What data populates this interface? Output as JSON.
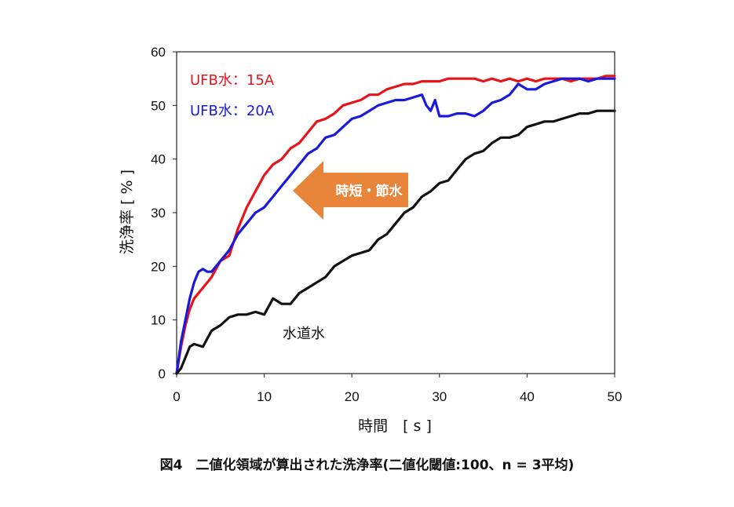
{
  "caption": "図4　二値化領域が算出された洗浄率(二値化閾値:100、n = 3平均)",
  "chart_data": {
    "type": "line",
    "title": "",
    "xlabel": "時間　[ s ]",
    "ylabel": "洗浄率 [ % ]",
    "xlim": [
      0,
      50
    ],
    "ylim": [
      0,
      60
    ],
    "xticks": [
      0,
      10,
      20,
      30,
      40,
      50
    ],
    "yticks": [
      0,
      10,
      20,
      30,
      40,
      50,
      60
    ],
    "grid": false,
    "legend_position": "top-left, inside plot",
    "annotations": {
      "tap_water_label": "水道水",
      "arrow_label": "時短・節水",
      "arrow_color": "#e8853a"
    },
    "series": [
      {
        "name": "UFB水：15A",
        "color": "#e8141c",
        "x": [
          0,
          0.5,
          1,
          1.5,
          2,
          3,
          4,
          5,
          6,
          7,
          8,
          9,
          10,
          11,
          12,
          13,
          14,
          15,
          16,
          17,
          18,
          19,
          20,
          21,
          22,
          23,
          24,
          25,
          26,
          27,
          28,
          29,
          30,
          31,
          32,
          33,
          34,
          35,
          36,
          37,
          38,
          39,
          40,
          41,
          42,
          43,
          44,
          45,
          46,
          47,
          48,
          49,
          50
        ],
        "y": [
          0,
          5,
          9,
          12,
          14,
          16,
          18,
          21,
          22,
          27,
          31,
          34,
          37,
          39,
          40,
          42,
          43,
          45,
          47,
          47.5,
          48.5,
          50,
          50.5,
          51,
          52,
          52,
          53,
          53.5,
          54,
          54,
          54.5,
          54.5,
          54.5,
          55,
          55,
          55,
          55,
          54.5,
          55,
          54.5,
          55,
          54.5,
          55,
          54.5,
          55,
          55,
          55,
          54.5,
          55,
          55,
          55,
          55.5,
          55.5
        ]
      },
      {
        "name": "UFB水：20A",
        "color": "#1a1adc",
        "x": [
          0,
          0.5,
          1,
          1.5,
          2,
          2.5,
          3,
          3.5,
          4,
          5,
          6,
          7,
          8,
          9,
          10,
          11,
          12,
          13,
          14,
          15,
          16,
          17,
          18,
          19,
          20,
          21,
          22,
          23,
          24,
          25,
          26,
          27,
          28,
          28.5,
          29,
          29.5,
          30,
          31,
          32,
          33,
          34,
          35,
          36,
          37,
          38,
          39,
          40,
          41,
          42,
          43,
          44,
          45,
          46,
          47,
          48,
          49,
          50
        ],
        "y": [
          0,
          6,
          10,
          14,
          17,
          19,
          19.5,
          19,
          19,
          21,
          23,
          26,
          28,
          30,
          31,
          33,
          35,
          37,
          39,
          41,
          42,
          44,
          44.5,
          46,
          47.5,
          48,
          49,
          50,
          50.5,
          51,
          51,
          51.5,
          52,
          50,
          49,
          51,
          48,
          48,
          48.5,
          48.5,
          48,
          49,
          50.5,
          51,
          52,
          54,
          53,
          53,
          54,
          54.5,
          55,
          55,
          55,
          54.5,
          55,
          55,
          55
        ]
      },
      {
        "name": "水道水",
        "color": "#111111",
        "x": [
          0,
          0.5,
          1,
          1.5,
          2,
          3,
          4,
          5,
          6,
          7,
          8,
          9,
          10,
          11,
          12,
          13,
          14,
          15,
          16,
          17,
          18,
          19,
          20,
          21,
          22,
          23,
          24,
          25,
          26,
          27,
          28,
          29,
          30,
          31,
          32,
          33,
          34,
          35,
          36,
          37,
          38,
          39,
          40,
          41,
          42,
          43,
          44,
          45,
          46,
          47,
          48,
          49,
          50
        ],
        "y": [
          0,
          1,
          3,
          5,
          5.5,
          5,
          8,
          9,
          10.5,
          11,
          11,
          11.5,
          11,
          14,
          13,
          13,
          15,
          16,
          17,
          18,
          20,
          21,
          22,
          22.5,
          23,
          25,
          26,
          28,
          30,
          31,
          33,
          34,
          35.5,
          36,
          38,
          40,
          41,
          41.5,
          43,
          44,
          44,
          44.5,
          46,
          46.5,
          47,
          47,
          47.5,
          48,
          48.5,
          48.5,
          49,
          49,
          49
        ]
      }
    ]
  }
}
